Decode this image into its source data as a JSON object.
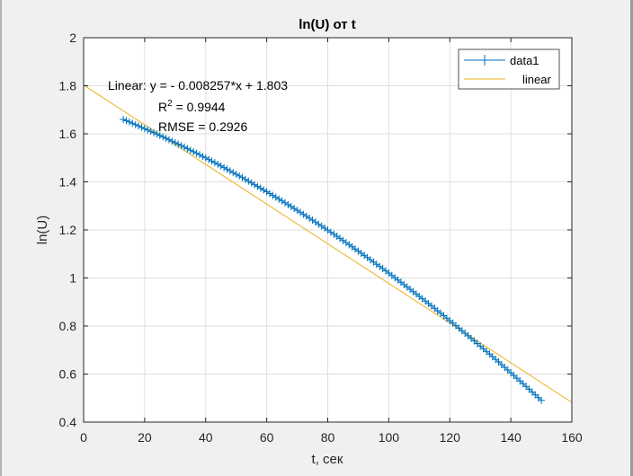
{
  "chart_data": {
    "type": "scatter",
    "title": "ln(U) от t",
    "xlabel": "t, сек",
    "ylabel": "ln(U)",
    "xlim": [
      0,
      160
    ],
    "ylim": [
      0.4,
      2
    ],
    "xticks": [
      "0",
      "20",
      "40",
      "60",
      "80",
      "100",
      "120",
      "140",
      "160"
    ],
    "yticks": [
      "0.4",
      "0.6",
      "0.8",
      "1",
      "1.2",
      "1.4",
      "1.6",
      "1.8",
      "2"
    ],
    "grid": true,
    "legend_position": "top-right",
    "series": [
      {
        "name": "data1",
        "marker": "+",
        "color": "#0072bd",
        "x_start": 13,
        "x_end": 150,
        "x_step": 1,
        "y_start": 1.66,
        "y_end": 0.49
      },
      {
        "name": "linear",
        "color": "#edb120",
        "slope": -0.008257,
        "intercept": 1.803,
        "x_range": [
          0,
          160
        ]
      }
    ],
    "annotation": {
      "line1": "Linear:  y = - 0.008257*x + 1.803",
      "r2_prefix": "R",
      "r2_sup": "2",
      "r2_value": " = 0.9944",
      "rmse": "RMSE = 0.2926"
    }
  },
  "colors": {
    "background": "#f0f0f0",
    "axes": "#262626",
    "grid": "#dfdfdf"
  }
}
